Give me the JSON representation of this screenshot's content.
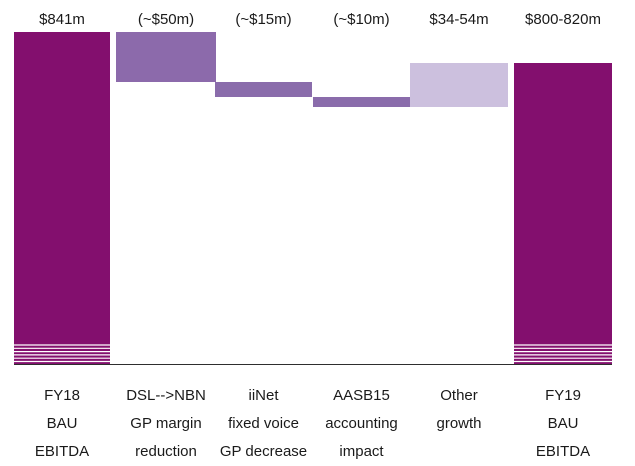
{
  "chart_data": {
    "type": "bar",
    "variant": "waterfall",
    "categories": [
      [
        "FY18",
        "BAU",
        "EBITDA"
      ],
      [
        "DSL-->NBN",
        "GP margin",
        "reduction"
      ],
      [
        "iiNet",
        "fixed voice",
        "GP decrease"
      ],
      [
        "AASB15",
        "accounting",
        "impact"
      ],
      [
        "Other",
        "growth"
      ],
      [
        "FY19",
        "BAU",
        "EBITDA"
      ]
    ],
    "value_labels": [
      "$841m",
      "(~$50m)",
      "(~$15m)",
      "(~$10m)",
      "$34-54m",
      "$800-820m"
    ],
    "series": [
      {
        "values": [
          {
            "kind": "total",
            "from": 0,
            "to": 841
          },
          {
            "kind": "delta",
            "from": 841,
            "to": 791
          },
          {
            "kind": "delta",
            "from": 791,
            "to": 776
          },
          {
            "kind": "delta",
            "from": 776,
            "to": 766
          },
          {
            "kind": "delta_range",
            "from": 766,
            "to": 810,
            "range": [
              34,
              54
            ]
          },
          {
            "kind": "total",
            "from": 0,
            "to": 810,
            "range": [
              800,
              820
            ]
          }
        ]
      }
    ],
    "axis_break": true,
    "gridlines": false,
    "legend": "none",
    "colors": {
      "total": "#830f6e",
      "decrease_large": "#8c6aab",
      "decrease_small": "#8a6cab",
      "growth": "#ccc0de",
      "break_lines": "#ffffff",
      "baseline": "#2e2e2e"
    }
  }
}
